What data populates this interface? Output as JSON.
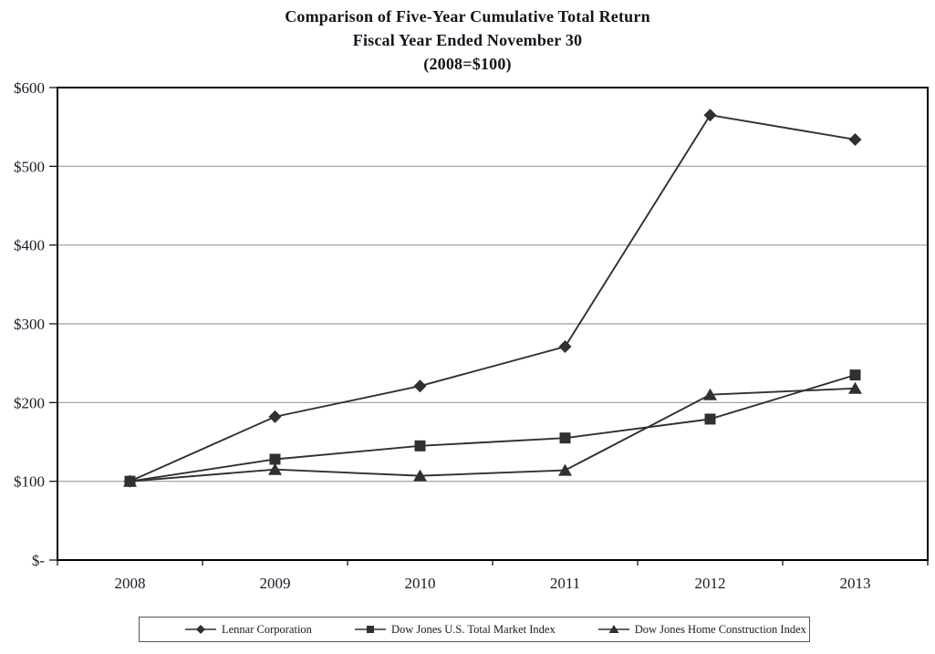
{
  "title": {
    "line1": "Comparison of Five-Year Cumulative Total Return",
    "line2": "Fiscal Year Ended November 30",
    "line3": "(2008=$100)"
  },
  "chart_data": {
    "type": "line",
    "title": "Comparison of Five-Year Cumulative Total Return",
    "subtitle": "Fiscal Year Ended November 30",
    "baseline_note": "(2008=$100)",
    "categories": [
      "2008",
      "2009",
      "2010",
      "2011",
      "2012",
      "2013"
    ],
    "series": [
      {
        "name": "Lennar Corporation",
        "marker": "diamond",
        "values": [
          100,
          182,
          221,
          271,
          565,
          534
        ]
      },
      {
        "name": "Dow Jones U.S. Total Market Index",
        "marker": "square",
        "values": [
          100,
          128,
          145,
          155,
          179,
          235
        ]
      },
      {
        "name": "Dow Jones Home Construction Index",
        "marker": "triangle",
        "values": [
          100,
          115,
          107,
          114,
          210,
          218
        ]
      }
    ],
    "y_ticks": [
      {
        "value": 0,
        "label": "$-"
      },
      {
        "value": 100,
        "label": "$100"
      },
      {
        "value": 200,
        "label": "$200"
      },
      {
        "value": 300,
        "label": "$300"
      },
      {
        "value": 400,
        "label": "$400"
      },
      {
        "value": 500,
        "label": "$500"
      },
      {
        "value": 600,
        "label": "$600"
      }
    ],
    "ylim": [
      0,
      600
    ],
    "grid": "horizontal",
    "legend_position": "bottom",
    "colors": {
      "series": "#303032",
      "gridline": "#9a9a9a",
      "axis": "#000000",
      "text": "#1a1a28"
    }
  }
}
